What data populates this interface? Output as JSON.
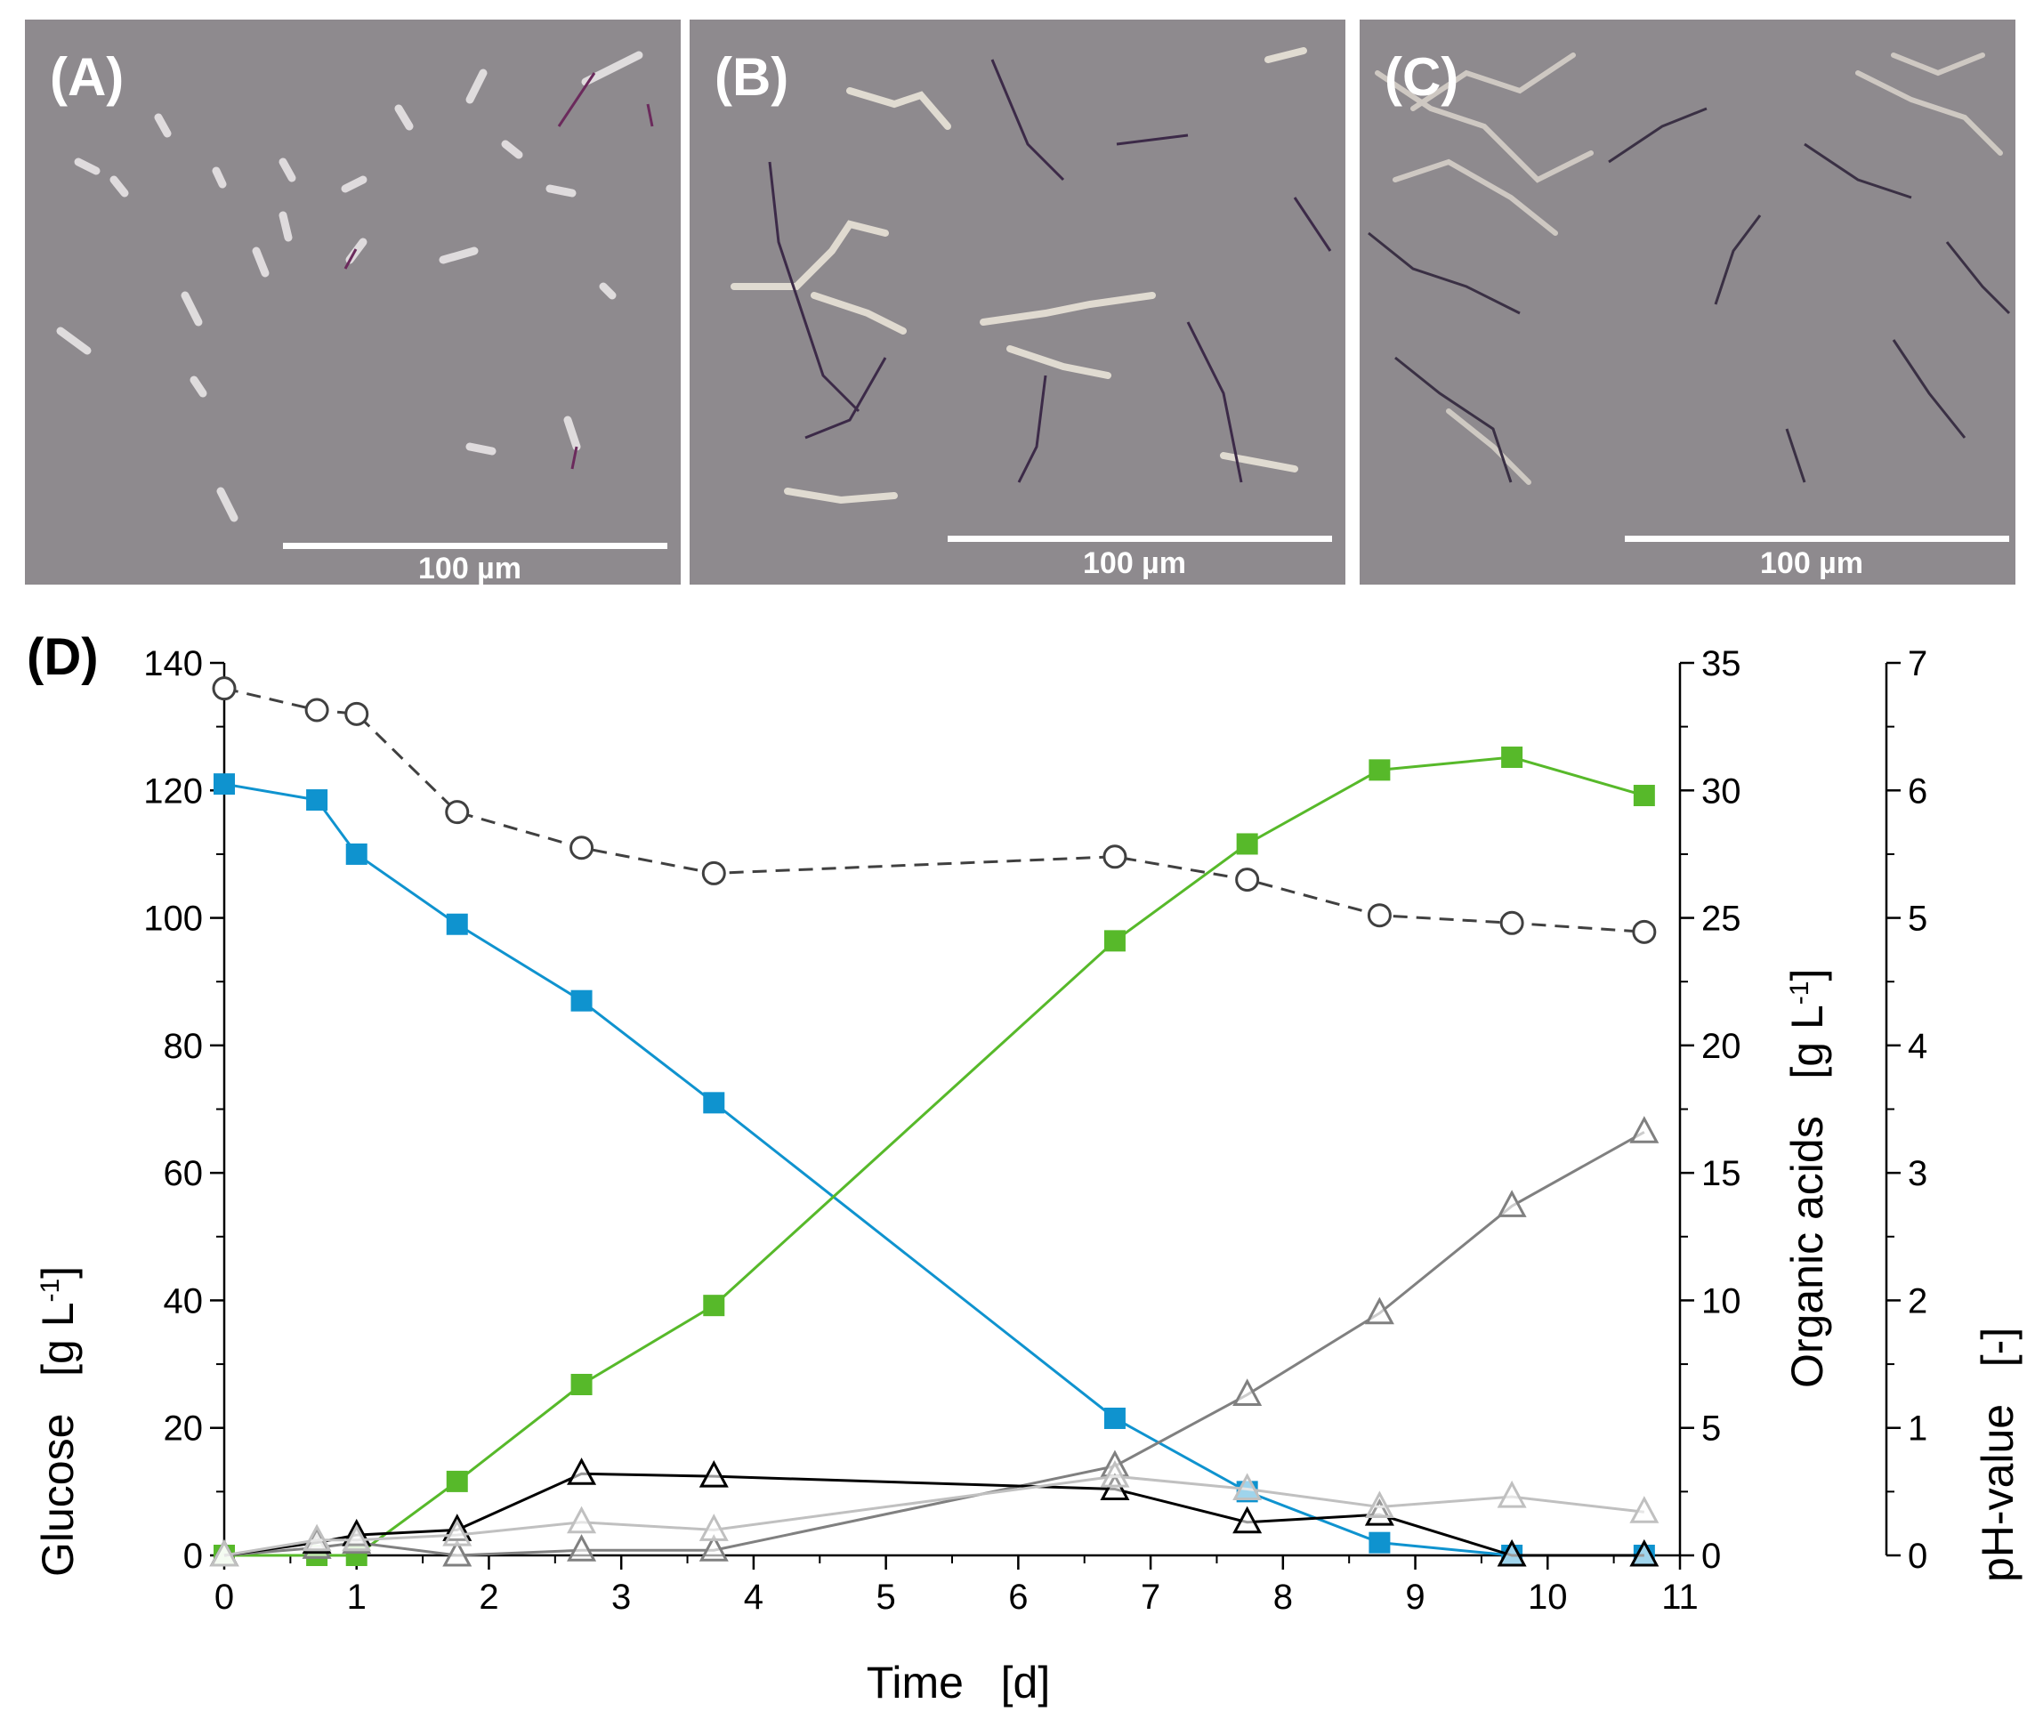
{
  "panels": {
    "a": {
      "label": "(A)",
      "scale": "100 µm"
    },
    "b": {
      "label": "(B)",
      "scale": "100 µm"
    },
    "c": {
      "label": "(C)",
      "scale": "100 µm"
    }
  },
  "colors": {
    "background_photo": "#8e8a8e",
    "glucose": "#0f93cf",
    "green_series": "#57b92a",
    "dark_gray_series": "#808080",
    "black_series": "#000000",
    "light_gray_series": "#c0c0c0",
    "ph_series": "#404040"
  },
  "chart_data": {
    "type": "line",
    "panel_label": "(D)",
    "xlabel": "Time   [d]",
    "ylabel_left": "Glucose   [g L",
    "ylabel_right": "Organic acids   [g L",
    "ylabel_ph": "pH-value   [-]",
    "unit_superscript": "-1",
    "xlim": [
      0,
      11
    ],
    "ylim_left": [
      0,
      140
    ],
    "ylim_right": [
      0,
      35
    ],
    "ylim_ph": [
      0,
      7
    ],
    "x_ticks": [
      "0",
      "1",
      "2",
      "3",
      "4",
      "5",
      "6",
      "7",
      "8",
      "9",
      "10",
      "11"
    ],
    "y_left_ticks": [
      "0",
      "20",
      "40",
      "60",
      "80",
      "100",
      "120",
      "140"
    ],
    "y_right_ticks": [
      "0",
      "5",
      "10",
      "15",
      "20",
      "25",
      "30",
      "35"
    ],
    "y_ph_ticks": [
      "0",
      "1",
      "2",
      "3",
      "4",
      "5",
      "6",
      "7"
    ],
    "series": [
      {
        "axis": "left",
        "marker": "square",
        "color_key": "glucose",
        "dash": false,
        "x": [
          0,
          0.7,
          1.0,
          1.76,
          2.7,
          3.7,
          6.73,
          7.73,
          8.73,
          9.73,
          10.73
        ],
        "y": [
          121,
          118.5,
          110,
          99,
          87,
          71,
          21.5,
          10,
          2,
          0,
          0
        ]
      },
      {
        "axis": "right",
        "marker": "square",
        "color_key": "green_series",
        "dash": false,
        "x": [
          0,
          0.7,
          1.0,
          1.76,
          2.7,
          3.7,
          6.73,
          7.73,
          8.73,
          9.73,
          10.73
        ],
        "y": [
          0,
          0,
          0,
          2.9,
          6.7,
          9.8,
          24.1,
          27.9,
          30.8,
          31.3,
          29.8
        ]
      },
      {
        "axis": "right",
        "marker": "triangle",
        "color_key": "dark_gray_series",
        "dash": false,
        "x": [
          0,
          0.7,
          1.0,
          1.76,
          2.7,
          3.7,
          6.73,
          7.73,
          8.73,
          9.73,
          10.73
        ],
        "y": [
          0,
          0.3,
          0.5,
          0,
          0.2,
          0.2,
          3.5,
          6.3,
          9.5,
          13.7,
          16.6
        ]
      },
      {
        "axis": "right",
        "marker": "triangle",
        "color_key": "black_series",
        "dash": false,
        "x": [
          0,
          0.7,
          1.0,
          1.76,
          2.7,
          3.7,
          6.73,
          7.73,
          8.73,
          9.73,
          10.73
        ],
        "y": [
          0,
          0.5,
          0.8,
          1.0,
          3.2,
          3.1,
          2.6,
          1.3,
          1.6,
          0,
          0
        ]
      },
      {
        "axis": "right",
        "marker": "triangle",
        "color_key": "light_gray_series",
        "dash": false,
        "x": [
          0,
          0.7,
          1.0,
          1.76,
          2.7,
          3.7,
          6.73,
          7.73,
          8.73,
          9.73,
          10.73
        ],
        "y": [
          0,
          0.6,
          0.6,
          0.8,
          1.3,
          1.0,
          3.1,
          2.6,
          1.9,
          2.3,
          1.7
        ]
      },
      {
        "axis": "ph",
        "marker": "circle",
        "color_key": "ph_series",
        "dash": true,
        "x": [
          0,
          0.7,
          1.0,
          1.76,
          2.7,
          3.7,
          6.73,
          7.73,
          8.73,
          9.73,
          10.73
        ],
        "y": [
          6.8,
          6.63,
          6.6,
          5.83,
          5.55,
          5.35,
          5.48,
          5.3,
          5.02,
          4.96,
          4.89
        ]
      }
    ]
  }
}
